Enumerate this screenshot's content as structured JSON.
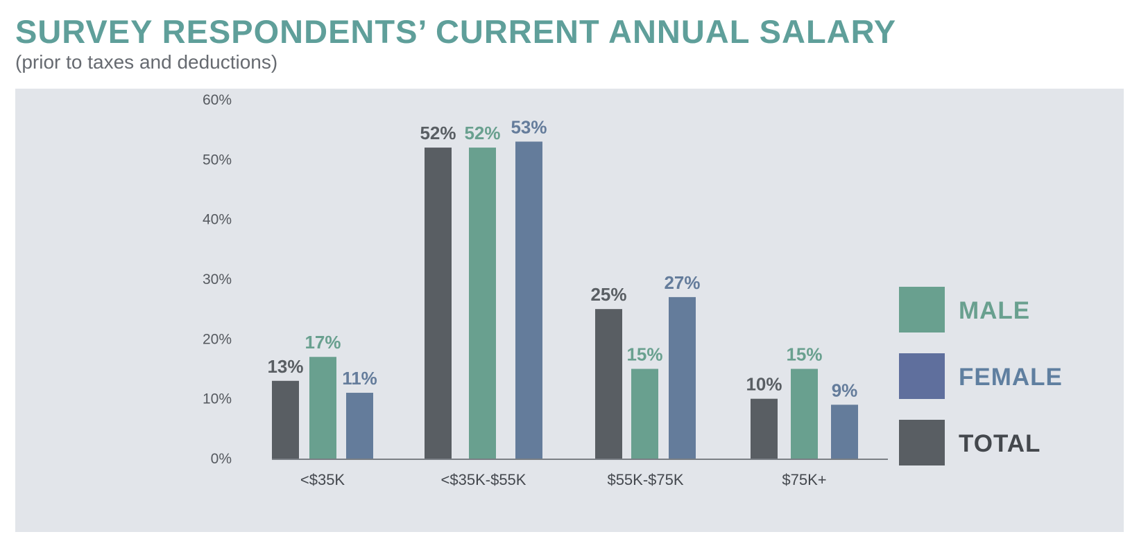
{
  "chart_data": {
    "type": "bar",
    "title": "SURVEY RESPONDENTS’ CURRENT ANNUAL SALARY",
    "subtitle": "(prior to taxes and deductions)",
    "categories": [
      "<$35K",
      "<$35K-$55K",
      "$55K-$75K",
      "$75K+"
    ],
    "series": [
      {
        "name": "TOTAL",
        "color": "#595e63",
        "values": [
          13,
          52,
          25,
          10
        ],
        "labels": [
          "13%",
          "52%",
          "25%",
          "10%"
        ]
      },
      {
        "name": "MALE",
        "color": "#69a08f",
        "values": [
          17,
          52,
          15,
          15
        ],
        "labels": [
          "17%",
          "52%",
          "15%",
          "15%"
        ]
      },
      {
        "name": "FEMALE",
        "color": "#647c9b",
        "values": [
          11,
          53,
          27,
          9
        ],
        "labels": [
          "11%",
          "53%",
          "27%",
          "9%"
        ]
      }
    ],
    "yticks": [
      "0%",
      "10%",
      "20%",
      "30%",
      "40%",
      "50%",
      "60%"
    ],
    "ylim": [
      0,
      60
    ],
    "grid": false,
    "legend": {
      "placement": "right",
      "items": [
        {
          "name": "MALE",
          "color": "#69a08f",
          "text_color": "#69a08f"
        },
        {
          "name": "FEMALE",
          "color": "#5f6f9d",
          "text_color": "#5f7fa0"
        },
        {
          "name": "TOTAL",
          "color": "#595e63",
          "text_color": "#44484d"
        }
      ]
    }
  }
}
